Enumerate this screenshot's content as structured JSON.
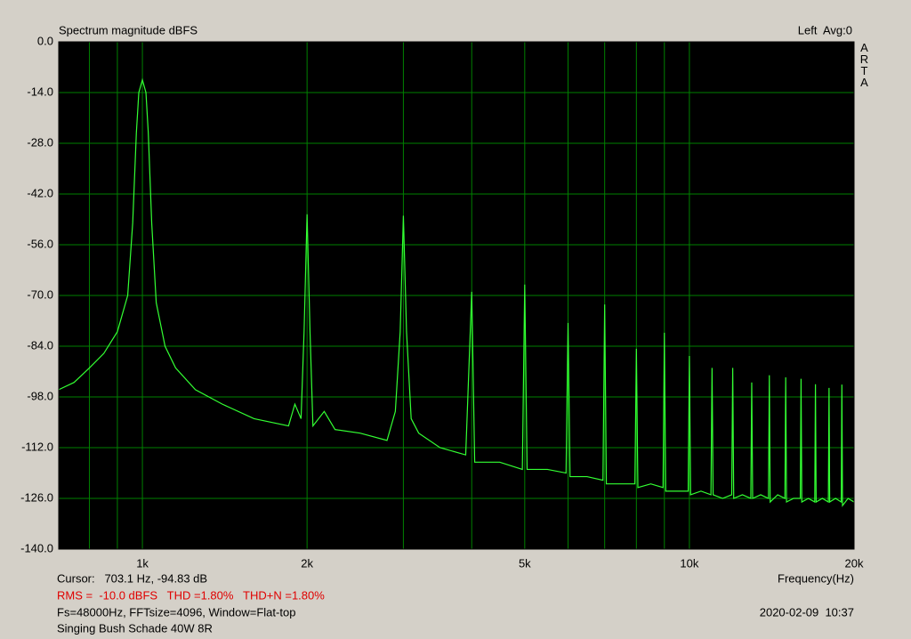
{
  "chart_data": {
    "type": "line",
    "title": "Spectrum magnitude dBFS",
    "channel_label": "Left  Avg:0",
    "brand": "ARTA",
    "x_label": "Frequency(Hz)",
    "cursor_text": "Cursor:   703.1 Hz, -94.83 dB",
    "measurement_text": "RMS =  -10.0 dBFS   THD =1.80%   THD+N =1.80%",
    "settings_text": "Fs=48000Hz, FFTsize=4096, Window=Flat-top",
    "timestamp": "2020-02-09  10:37",
    "device_text": "Singing Bush Schade 40W 8R",
    "xscale": "log",
    "grid": true,
    "xlim": [
      703.1,
      20000
    ],
    "ylim": [
      -140,
      0
    ],
    "xticks": [
      {
        "value": 1000,
        "label": "1k"
      },
      {
        "value": 2000,
        "label": "2k"
      },
      {
        "value": 5000,
        "label": "5k"
      },
      {
        "value": 10000,
        "label": "10k"
      },
      {
        "value": 20000,
        "label": "20k"
      }
    ],
    "xminor": [
      800,
      900,
      3000,
      4000,
      6000,
      7000,
      8000,
      9000
    ],
    "yticks": [
      {
        "value": 0,
        "label": "0.0"
      },
      {
        "value": -14,
        "label": "-14.0"
      },
      {
        "value": -28,
        "label": "-28.0"
      },
      {
        "value": -42,
        "label": "-42.0"
      },
      {
        "value": -56,
        "label": "-56.0"
      },
      {
        "value": -70,
        "label": "-70.0"
      },
      {
        "value": -84,
        "label": "-84.0"
      },
      {
        "value": -98,
        "label": "-98.0"
      },
      {
        "value": -112,
        "label": "-112.0"
      },
      {
        "value": -126,
        "label": "-126.0"
      },
      {
        "value": -140,
        "label": "-140.0"
      }
    ],
    "x": [
      703,
      750,
      800,
      850,
      900,
      940,
      960,
      975,
      985,
      1000,
      1015,
      1025,
      1040,
      1060,
      1100,
      1150,
      1250,
      1400,
      1600,
      1850,
      1900,
      1950,
      1975,
      2000,
      2025,
      2050,
      2150,
      2250,
      2500,
      2800,
      2900,
      2960,
      3000,
      3040,
      3100,
      3200,
      3500,
      3900,
      4000,
      4050,
      4500,
      4950,
      5000,
      5050,
      5500,
      5950,
      6000,
      6050,
      6500,
      6950,
      7000,
      7050,
      7500,
      7950,
      8000,
      8050,
      8500,
      8950,
      9000,
      9050,
      9500,
      9950,
      10000,
      10050,
      10500,
      10950,
      11000,
      11050,
      11500,
      11950,
      12000,
      12050,
      12500,
      12950,
      13000,
      13050,
      13500,
      13950,
      14000,
      14050,
      14500,
      14950,
      15000,
      15050,
      15500,
      15950,
      16000,
      16050,
      16500,
      16950,
      17000,
      17050,
      17500,
      17950,
      18000,
      18050,
      18500,
      18950,
      19000,
      19050,
      19500,
      20000
    ],
    "series": [
      {
        "name": "Left",
        "color": "#33ff33",
        "values": [
          -96,
          -94,
          -90,
          -86,
          -80,
          -70,
          -50,
          -25,
          -14,
          -10.5,
          -14,
          -25,
          -50,
          -72,
          -84,
          -90,
          -96,
          -100,
          -104,
          -106,
          -100,
          -104,
          -80,
          -47.6,
          -80,
          -106,
          -102,
          -107,
          -108,
          -110,
          -102,
          -80,
          -48,
          -80,
          -104,
          -108,
          -112,
          -114,
          -69,
          -116,
          -116,
          -118,
          -67,
          -118,
          -118,
          -119,
          -77.6,
          -120,
          -120,
          -121,
          -72.5,
          -122,
          -122,
          -122,
          -84.7,
          -123,
          -122,
          -123,
          -80.3,
          -124,
          -124,
          -124,
          -86.7,
          -125,
          -124,
          -125,
          -90,
          -125,
          -126,
          -125,
          -90,
          -126,
          -125,
          -126,
          -94,
          -126,
          -125,
          -126,
          -92,
          -127,
          -125,
          -126,
          -92.6,
          -127,
          -126,
          -126,
          -93,
          -127,
          -126,
          -127,
          -94.5,
          -127,
          -126,
          -127,
          -95.5,
          -127,
          -126,
          -127,
          -94.6,
          -128,
          -126,
          -127
        ]
      }
    ]
  }
}
